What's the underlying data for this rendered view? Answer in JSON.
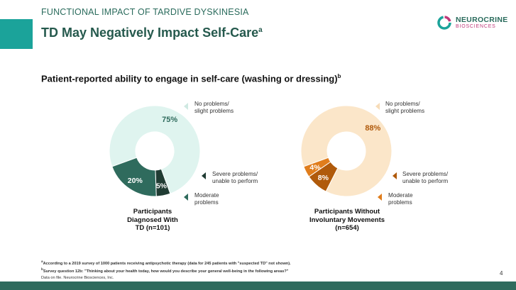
{
  "header": {
    "kicker": "FUNCTIONAL IMPACT OF TARDIVE DYSKINESIA",
    "title": "TD May Negatively Impact Self-Care",
    "title_sup": "a"
  },
  "logo": {
    "name": "NEUROCRINE",
    "sub": "BIOSCIENCES"
  },
  "subtitle": "Patient-reported ability to engage in self-care (washing or dressing)",
  "subtitle_sup": "b",
  "chart_data": [
    {
      "type": "pie",
      "title": "Participants Diagnosed With TD (n=101)",
      "slices": [
        {
          "label": "No problems/ slight problems",
          "value": 75,
          "display": "75%",
          "color": "#dff4ef"
        },
        {
          "label": "Severe problems/ unable to perform",
          "value": 5,
          "display": "5%",
          "color": "#203c33"
        },
        {
          "label": "Moderate problems",
          "value": 20,
          "display": "20%",
          "color": "#2f6b5d"
        }
      ]
    },
    {
      "type": "pie",
      "title": "Participants Without Involuntary Movements (n=654)",
      "slices": [
        {
          "label": "No problems/ slight problems",
          "value": 88,
          "display": "88%",
          "color": "#fbe6c9"
        },
        {
          "label": "Severe problems/ unable to perform",
          "value": 8,
          "display": "8%",
          "color": "#b05a0b"
        },
        {
          "label": "Moderate problems",
          "value": 4,
          "display": "4%",
          "color": "#e07d1c"
        }
      ]
    }
  ],
  "charts_text": [
    {
      "caption_lines": [
        "Participants",
        "Diagnosed With",
        "TD (n=101)"
      ],
      "label_none": [
        "No problems/",
        "slight problems"
      ],
      "label_severe": [
        "Severe problems/",
        "unable to perform"
      ],
      "label_moderate": [
        "Moderate",
        "problems"
      ]
    },
    {
      "caption_lines": [
        "Participants Without",
        "Involuntary Movements",
        "(n=654)"
      ],
      "label_none": [
        "No problems/",
        "slight problems"
      ],
      "label_severe": [
        "Severe problems/",
        "unable to perform"
      ],
      "label_moderate": [
        "Moderate",
        "problems"
      ]
    }
  ],
  "footnotes": {
    "a_mark": "a",
    "a": "According to a 2019 survey of 1000 patients receiving antipsychotic therapy (data for 245 patients with \"suspected TD\" not shown).",
    "b_mark": "b",
    "b": "Survey question 12b: \"Thinking about your health today, how would you describe your general well-being in the following areas?\"",
    "c": "Data on file. Neurocrine Biosciences, Inc."
  },
  "page_number": "4"
}
